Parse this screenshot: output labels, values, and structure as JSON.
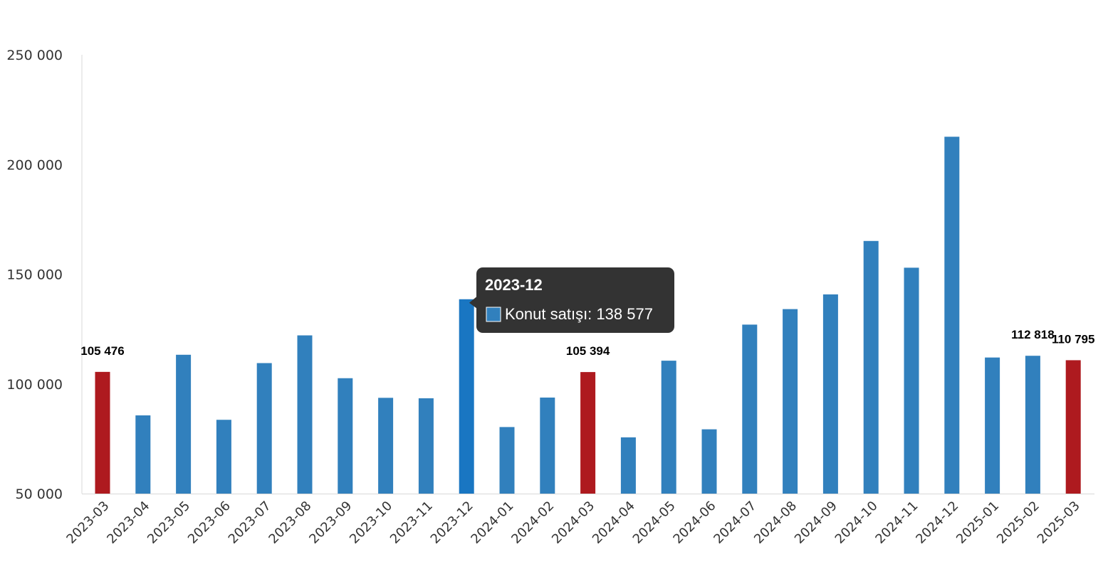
{
  "chart_data": {
    "type": "bar",
    "categories": [
      "2023-03",
      "2023-04",
      "2023-05",
      "2023-06",
      "2023-07",
      "2023-08",
      "2023-09",
      "2023-10",
      "2023-11",
      "2023-12",
      "2024-01",
      "2024-02",
      "2024-03",
      "2024-04",
      "2024-05",
      "2024-06",
      "2024-07",
      "2024-08",
      "2024-09",
      "2024-10",
      "2024-11",
      "2024-12",
      "2025-01",
      "2025-02",
      "2025-03"
    ],
    "series": [
      {
        "name": "Konut satışı",
        "values": [
          105476,
          85651,
          113276,
          83636,
          109480,
          122113,
          102594,
          93653,
          93449,
          138577,
          80335,
          93775,
          105394,
          75639,
          110577,
          79302,
          127021,
          134086,
          140794,
          165140,
          152955,
          212640,
          112027,
          112818,
          110795
        ]
      }
    ],
    "highlighted": [
      "2023-03",
      "2024-03",
      "2025-03"
    ],
    "data_labels": [
      {
        "category": "2023-03",
        "text": "105 476"
      },
      {
        "category": "2024-03",
        "text": "105 394"
      },
      {
        "category": "2025-02",
        "text": "112 818"
      },
      {
        "category": "2025-03",
        "text": "110 795"
      }
    ],
    "yticks": [
      {
        "value": 50000,
        "label": "50 000"
      },
      {
        "value": 100000,
        "label": "100 000"
      },
      {
        "value": 150000,
        "label": "150 000"
      },
      {
        "value": 200000,
        "label": "200 000"
      },
      {
        "value": 250000,
        "label": "250 000"
      }
    ],
    "ylim": [
      50000,
      250000
    ],
    "title": "",
    "xlabel": "",
    "ylabel": "",
    "grid": false,
    "tooltip": {
      "category": "2023-12",
      "title": "2023-12",
      "series_name": "Konut satışı",
      "value_text": "138 577"
    },
    "colors": {
      "bar": "#3180bd",
      "highlight": "#ae1a1f",
      "hover": "#1976c2",
      "axis": "#d9d9d9",
      "tooltip_bg": "#333333"
    }
  }
}
